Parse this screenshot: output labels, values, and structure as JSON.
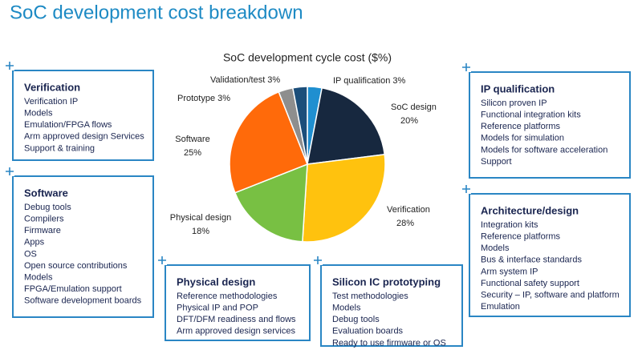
{
  "title": "SoC development cost breakdown",
  "chart_data": {
    "type": "pie",
    "title": "SoC development cycle cost ($%)",
    "categories": [
      "IP qualification",
      "SoC design",
      "Verification",
      "Physical design",
      "Software",
      "Prototype",
      "Validation/test"
    ],
    "values": [
      3,
      20,
      28,
      18,
      25,
      3,
      3
    ],
    "value_labels": [
      "3%",
      "20%",
      "28%",
      "18%",
      "25%",
      "3%",
      "3%"
    ],
    "colors": [
      "#1f8fd0",
      "#17283f",
      "#ffc20e",
      "#78c043",
      "#ff6a0a",
      "#8e8e8e",
      "#1b4e7a"
    ]
  },
  "boxes": [
    {
      "title": "Verification",
      "items": [
        "Verification IP",
        "Models",
        "Emulation/FPGA flows",
        "Arm approved design Services",
        "Support & training"
      ]
    },
    {
      "title": "Software",
      "items": [
        "Debug tools",
        "Compilers",
        "Firmware",
        "Apps",
        "OS",
        "Open source contributions",
        "Models",
        "FPGA/Emulation support",
        "Software development boards"
      ]
    },
    {
      "title": "Physical design",
      "items": [
        "Reference methodologies",
        "Physical IP and POP",
        "DFT/DFM readiness and flows",
        "Arm approved design services"
      ]
    },
    {
      "title": "Silicon IC prototyping",
      "items": [
        "Test methodologies",
        "Models",
        "Debug tools",
        "Evaluation boards",
        "Ready to use firmware or OS"
      ]
    },
    {
      "title": "IP qualification",
      "items": [
        "Silicon proven IP",
        "Functional integration kits",
        "Reference platforms",
        "Models for simulation",
        "Models for software acceleration",
        "Support"
      ]
    },
    {
      "title": "Architecture/design",
      "items": [
        "Integration kits",
        "Reference platforms",
        "Models",
        "Bus & interface standards",
        "Arm system IP",
        "Functional safety support",
        "Security – IP, software and platform",
        "Emulation"
      ]
    }
  ]
}
